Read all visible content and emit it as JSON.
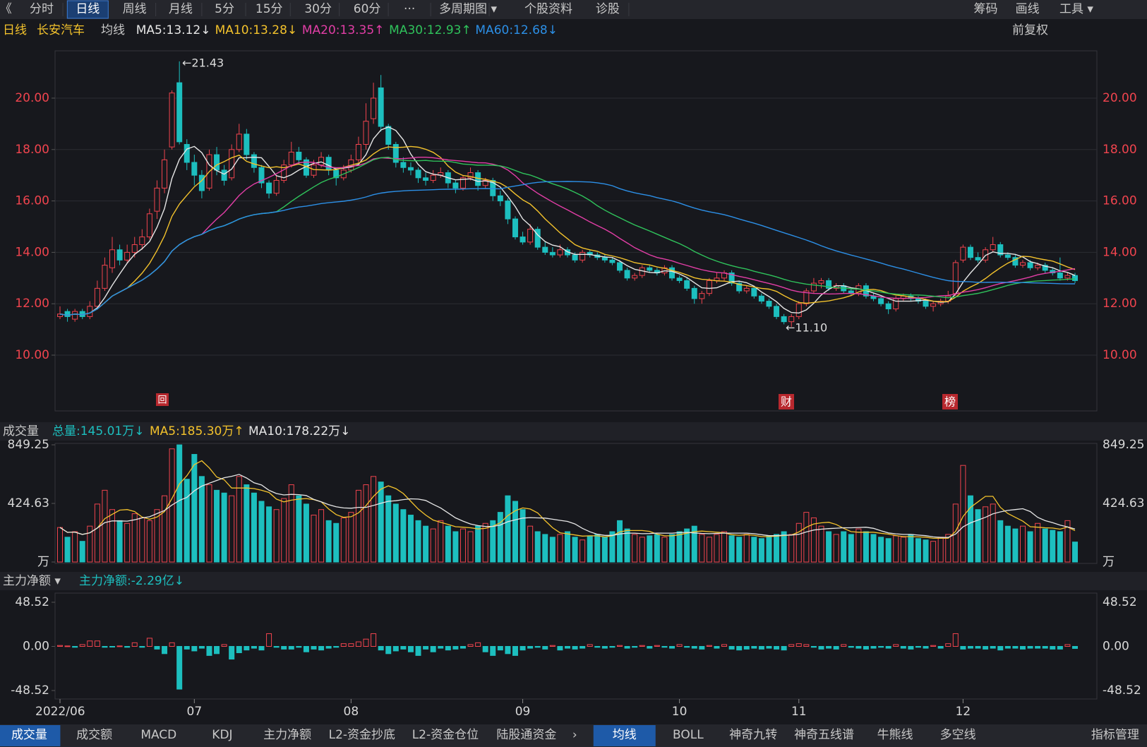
{
  "toolbar": {
    "left": [
      "《",
      "分时",
      "日线",
      "周线",
      "月线",
      "5分",
      "15分",
      "30分",
      "60分",
      "···",
      "多周期图 ▾",
      "个股资料",
      "诊股"
    ],
    "right": [
      "筹码",
      "画线",
      "工具 ▾"
    ]
  },
  "info": {
    "period": "日线",
    "stock": "长安汽车",
    "ma_label": "均线",
    "adjust": "前复权"
  },
  "chart_data": {
    "type": "candlestick",
    "up_color": "#f0444e",
    "down_color": "#1dbfbf",
    "grid": true,
    "ylim": [
      7.83,
      21.84
    ],
    "yticks": [
      {
        "value": 10,
        "label": "10.00"
      },
      {
        "value": 12,
        "label": "12.00"
      },
      {
        "value": 14,
        "label": "14.00"
      },
      {
        "value": 16,
        "label": "16.00"
      },
      {
        "value": 18,
        "label": "18.00"
      },
      {
        "value": 20,
        "label": "20.00"
      }
    ],
    "ma": [
      {
        "name": "MA5:13.12↓",
        "period": 5,
        "color": "#e6e6e6"
      },
      {
        "name": "MA10:13.28↓",
        "period": 10,
        "color": "#f3c22c"
      },
      {
        "name": "MA20:13.35↑",
        "period": 20,
        "color": "#e23ea6"
      },
      {
        "name": "MA30:12.93↑",
        "period": 30,
        "color": "#2fc25b"
      },
      {
        "name": "MA60:12.68↓",
        "period": 60,
        "color": "#2c8fe6"
      }
    ],
    "annotations": [
      "←21.43",
      "←11.10"
    ],
    "badges": [
      "回",
      "财",
      "榜"
    ],
    "categories": [
      "2022/06",
      null,
      null,
      null,
      null,
      null,
      null,
      null,
      null,
      null,
      null,
      null,
      null,
      null,
      null,
      null,
      null,
      null,
      "07",
      null,
      null,
      null,
      null,
      null,
      null,
      null,
      null,
      null,
      null,
      null,
      null,
      null,
      null,
      null,
      null,
      null,
      null,
      null,
      null,
      "08",
      null,
      null,
      null,
      null,
      null,
      null,
      null,
      null,
      null,
      null,
      null,
      null,
      null,
      null,
      null,
      null,
      null,
      null,
      null,
      null,
      null,
      null,
      "09",
      null,
      null,
      null,
      null,
      null,
      null,
      null,
      null,
      null,
      null,
      null,
      null,
      null,
      null,
      null,
      null,
      null,
      null,
      null,
      null,
      "10",
      null,
      null,
      null,
      null,
      null,
      null,
      null,
      null,
      null,
      null,
      null,
      null,
      null,
      null,
      null,
      "11",
      null,
      null,
      null,
      null,
      null,
      null,
      null,
      null,
      null,
      null,
      null,
      null,
      null,
      null,
      null,
      null,
      null,
      null,
      null,
      null,
      null,
      "12",
      null,
      null,
      null,
      null,
      null,
      null,
      null,
      null,
      null,
      null,
      null,
      null,
      null,
      null,
      null
    ],
    "candles": [
      [
        11.5,
        11.9,
        11.4,
        11.6
      ],
      [
        11.7,
        11.8,
        11.3,
        11.5
      ],
      [
        11.4,
        11.8,
        11.3,
        11.7
      ],
      [
        11.7,
        11.8,
        11.4,
        11.5
      ],
      [
        11.5,
        12.1,
        11.4,
        11.9
      ],
      [
        11.9,
        12.9,
        11.8,
        12.6
      ],
      [
        12.6,
        13.8,
        12.5,
        13.5
      ],
      [
        13.4,
        14.6,
        13.2,
        14.1
      ],
      [
        14.1,
        14.3,
        13.5,
        13.7
      ],
      [
        13.7,
        14.3,
        13.6,
        14.0
      ],
      [
        14.0,
        14.6,
        13.8,
        14.3
      ],
      [
        14.3,
        14.9,
        14.1,
        14.6
      ],
      [
        14.6,
        15.7,
        14.5,
        15.5
      ],
      [
        15.6,
        16.8,
        15.3,
        16.5
      ],
      [
        16.5,
        18.0,
        16.3,
        17.6
      ],
      [
        18.1,
        20.3,
        18.0,
        20.2
      ],
      [
        20.6,
        21.43,
        18.2,
        18.3
      ],
      [
        18.2,
        18.4,
        17.2,
        17.5
      ],
      [
        17.5,
        17.8,
        16.6,
        17.0
      ],
      [
        17.0,
        17.2,
        16.1,
        16.4
      ],
      [
        16.5,
        18.0,
        16.4,
        17.8
      ],
      [
        17.8,
        18.1,
        17.0,
        17.2
      ],
      [
        17.2,
        17.4,
        16.6,
        16.8
      ],
      [
        16.9,
        18.2,
        16.8,
        18.0
      ],
      [
        18.0,
        19.0,
        17.9,
        18.6
      ],
      [
        18.6,
        18.8,
        17.6,
        17.8
      ],
      [
        17.8,
        17.9,
        17.1,
        17.3
      ],
      [
        17.3,
        17.4,
        16.5,
        16.7
      ],
      [
        16.7,
        16.8,
        16.1,
        16.3
      ],
      [
        16.3,
        17.0,
        16.2,
        16.8
      ],
      [
        16.8,
        17.6,
        16.7,
        17.4
      ],
      [
        17.4,
        18.3,
        17.3,
        17.9
      ],
      [
        17.9,
        18.1,
        17.4,
        17.6
      ],
      [
        17.6,
        17.7,
        16.9,
        17.0
      ],
      [
        17.0,
        17.6,
        16.9,
        17.4
      ],
      [
        17.4,
        17.9,
        17.3,
        17.7
      ],
      [
        17.7,
        17.8,
        17.0,
        17.2
      ],
      [
        17.2,
        17.3,
        16.6,
        16.9
      ],
      [
        16.9,
        17.4,
        16.8,
        17.2
      ],
      [
        17.2,
        17.8,
        17.1,
        17.6
      ],
      [
        17.6,
        18.5,
        17.5,
        18.2
      ],
      [
        18.2,
        19.8,
        18.0,
        19.1
      ],
      [
        19.2,
        20.6,
        19.0,
        20.0
      ],
      [
        20.4,
        20.9,
        18.7,
        18.9
      ],
      [
        18.9,
        19.0,
        18.0,
        18.2
      ],
      [
        18.2,
        18.3,
        17.3,
        17.5
      ],
      [
        17.5,
        17.7,
        17.1,
        17.3
      ],
      [
        17.3,
        17.5,
        17.0,
        17.2
      ],
      [
        17.2,
        17.3,
        16.7,
        16.9
      ],
      [
        16.9,
        17.1,
        16.6,
        16.8
      ],
      [
        16.8,
        17.2,
        16.7,
        17.0
      ],
      [
        17.0,
        17.3,
        16.9,
        17.1
      ],
      [
        17.1,
        17.2,
        16.5,
        16.7
      ],
      [
        16.7,
        16.8,
        16.3,
        16.5
      ],
      [
        16.5,
        17.0,
        16.4,
        16.9
      ],
      [
        16.9,
        17.3,
        16.8,
        17.1
      ],
      [
        17.1,
        17.2,
        16.4,
        16.6
      ],
      [
        16.6,
        16.9,
        16.5,
        16.8
      ],
      [
        16.8,
        16.9,
        16.0,
        16.2
      ],
      [
        16.2,
        16.4,
        15.8,
        16.0
      ],
      [
        16.0,
        16.1,
        15.1,
        15.3
      ],
      [
        15.3,
        15.4,
        14.5,
        14.6
      ],
      [
        14.6,
        14.8,
        14.3,
        14.4
      ],
      [
        14.4,
        15.1,
        14.3,
        14.9
      ],
      [
        14.9,
        15.0,
        14.1,
        14.2
      ],
      [
        14.2,
        14.4,
        13.9,
        14.0
      ],
      [
        14.0,
        14.2,
        13.8,
        13.9
      ],
      [
        13.9,
        14.3,
        13.8,
        14.1
      ],
      [
        14.1,
        14.2,
        13.8,
        13.9
      ],
      [
        13.9,
        14.0,
        13.6,
        13.7
      ],
      [
        13.7,
        14.1,
        13.6,
        14.0
      ],
      [
        14.0,
        14.1,
        13.8,
        13.9
      ],
      [
        13.9,
        14.0,
        13.7,
        13.8
      ],
      [
        13.8,
        13.9,
        13.6,
        13.7
      ],
      [
        13.7,
        13.8,
        13.5,
        13.6
      ],
      [
        13.6,
        13.7,
        13.2,
        13.3
      ],
      [
        13.3,
        13.4,
        12.9,
        13.0
      ],
      [
        13.0,
        13.2,
        12.9,
        13.1
      ],
      [
        13.1,
        13.5,
        13.0,
        13.4
      ],
      [
        13.4,
        13.5,
        13.2,
        13.3
      ],
      [
        13.3,
        13.4,
        13.1,
        13.2
      ],
      [
        13.2,
        13.5,
        13.1,
        13.4
      ],
      [
        13.4,
        13.5,
        12.9,
        13.0
      ],
      [
        13.0,
        13.1,
        12.8,
        12.9
      ],
      [
        12.9,
        13.0,
        12.5,
        12.6
      ],
      [
        12.6,
        12.7,
        12.0,
        12.2
      ],
      [
        12.2,
        12.5,
        12.0,
        12.4
      ],
      [
        12.4,
        13.0,
        12.3,
        12.9
      ],
      [
        12.9,
        13.2,
        12.8,
        13.0
      ],
      [
        13.0,
        13.3,
        12.9,
        13.2
      ],
      [
        13.2,
        13.3,
        12.7,
        12.8
      ],
      [
        12.8,
        12.9,
        12.4,
        12.5
      ],
      [
        12.5,
        12.7,
        12.4,
        12.6
      ],
      [
        12.6,
        12.7,
        12.2,
        12.3
      ],
      [
        12.3,
        12.4,
        12.0,
        12.1
      ],
      [
        12.1,
        12.2,
        11.8,
        11.9
      ],
      [
        11.9,
        12.0,
        11.4,
        11.5
      ],
      [
        11.5,
        11.6,
        11.2,
        11.3
      ],
      [
        11.3,
        11.6,
        11.1,
        11.5
      ],
      [
        11.5,
        12.1,
        11.4,
        12.0
      ],
      [
        12.0,
        12.6,
        11.9,
        12.5
      ],
      [
        12.5,
        13.0,
        12.4,
        12.8
      ],
      [
        12.8,
        13.0,
        12.6,
        12.9
      ],
      [
        12.9,
        13.0,
        12.5,
        12.6
      ],
      [
        12.6,
        12.8,
        12.5,
        12.7
      ],
      [
        12.7,
        12.8,
        12.4,
        12.5
      ],
      [
        12.5,
        12.6,
        12.3,
        12.4
      ],
      [
        12.4,
        12.8,
        12.3,
        12.7
      ],
      [
        12.7,
        12.8,
        12.2,
        12.3
      ],
      [
        12.3,
        12.4,
        12.1,
        12.2
      ],
      [
        12.2,
        12.3,
        11.9,
        12.0
      ],
      [
        12.0,
        12.1,
        11.6,
        11.8
      ],
      [
        11.8,
        12.3,
        11.7,
        12.2
      ],
      [
        12.2,
        12.4,
        12.1,
        12.3
      ],
      [
        12.3,
        12.4,
        12.1,
        12.2
      ],
      [
        12.2,
        12.3,
        12.0,
        12.1
      ],
      [
        12.1,
        12.2,
        11.8,
        11.9
      ],
      [
        11.9,
        12.1,
        11.7,
        12.0
      ],
      [
        12.0,
        12.2,
        11.9,
        12.1
      ],
      [
        12.1,
        12.5,
        12.0,
        12.3
      ],
      [
        12.4,
        13.7,
        12.3,
        13.6
      ],
      [
        13.7,
        14.3,
        13.6,
        14.2
      ],
      [
        14.2,
        14.3,
        13.7,
        13.8
      ],
      [
        13.8,
        14.0,
        13.6,
        13.7
      ],
      [
        13.7,
        14.2,
        13.6,
        14.1
      ],
      [
        14.1,
        14.6,
        14.0,
        14.3
      ],
      [
        14.3,
        14.4,
        13.8,
        13.9
      ],
      [
        13.9,
        14.0,
        13.7,
        13.8
      ],
      [
        13.8,
        13.9,
        13.4,
        13.5
      ],
      [
        13.5,
        13.7,
        13.4,
        13.6
      ],
      [
        13.6,
        13.7,
        13.3,
        13.4
      ],
      [
        13.4,
        13.6,
        13.3,
        13.5
      ],
      [
        13.5,
        13.6,
        13.2,
        13.3
      ],
      [
        13.3,
        13.4,
        13.1,
        13.2
      ],
      [
        13.2,
        13.8,
        12.9,
        13.0
      ],
      [
        13.0,
        13.2,
        12.9,
        13.1
      ],
      [
        13.1,
        13.2,
        12.8,
        12.9
      ]
    ]
  },
  "volume": {
    "title": "成交量",
    "legend": [
      {
        "name": "总量:145.01万↓",
        "color": "#1dbfbf"
      },
      {
        "name": "MA5:185.30万↑",
        "color": "#f3c22c"
      },
      {
        "name": "MA10:178.22万↓",
        "color": "#e6e6e6"
      }
    ],
    "ma": [
      {
        "period": 5,
        "color": "#f3c22c"
      },
      {
        "period": 10,
        "color": "#e6e6e6"
      }
    ],
    "ylim": [
      0,
      849.25
    ],
    "yticks": [
      {
        "value": 0,
        "label": "万"
      },
      424.63,
      849.25
    ],
    "values": [
      250,
      180,
      220,
      150,
      260,
      420,
      520,
      380,
      300,
      280,
      350,
      320,
      300,
      380,
      480,
      820,
      849,
      600,
      780,
      620,
      560,
      520,
      500,
      480,
      620,
      560,
      500,
      440,
      400,
      380,
      460,
      560,
      480,
      420,
      340,
      380,
      300,
      280,
      320,
      360,
      520,
      560,
      620,
      580,
      480,
      420,
      380,
      340,
      300,
      260,
      240,
      300,
      260,
      220,
      240,
      220,
      260,
      280,
      300,
      360,
      480,
      440,
      380,
      260,
      220,
      200,
      180,
      200,
      220,
      180,
      160,
      190,
      200,
      180,
      220,
      300,
      240,
      200,
      180,
      190,
      200,
      180,
      200,
      220,
      240,
      260,
      200,
      180,
      200,
      220,
      190,
      180,
      200,
      180,
      170,
      190,
      200,
      220,
      200,
      280,
      360,
      320,
      260,
      220,
      200,
      220,
      200,
      240,
      220,
      200,
      180,
      170,
      190,
      180,
      200,
      170,
      160,
      150,
      180,
      200,
      420,
      700,
      480,
      380,
      400,
      420,
      300,
      260,
      240,
      260,
      220,
      280,
      240,
      230,
      220,
      300,
      145.01
    ]
  },
  "net": {
    "title": "主力净额 ▾",
    "legend": "主力净额:-2.29亿↓",
    "ylim": [
      -48.52,
      48.52
    ],
    "yticks": [
      {
        "value": -48.52,
        "label": "-48.52"
      },
      {
        "value": 0,
        "label": "0.00"
      },
      {
        "value": 48.52,
        "label": "48.52"
      }
    ],
    "values": [
      1,
      0.5,
      -1,
      2,
      6,
      6,
      -1,
      -0.5,
      0.5,
      -1,
      4,
      -1,
      9,
      -3,
      -8,
      4,
      -47,
      -3,
      -5,
      -2,
      -10,
      -8,
      2,
      -14,
      -7,
      -4,
      -2,
      -4,
      14,
      -1,
      -3,
      -3,
      -1,
      -6,
      -3,
      -4,
      -2,
      -1,
      3,
      3,
      5,
      8,
      14,
      -4,
      -8,
      -5,
      -3,
      -6,
      -10,
      -3,
      -6,
      -2,
      -4,
      -3,
      -2,
      2,
      4,
      -6,
      -10,
      -4,
      -8,
      -10,
      -4,
      -2,
      -1,
      -3,
      1,
      -4,
      -2,
      -3,
      -2,
      2,
      -1,
      -2,
      -1,
      1,
      -2,
      -1,
      1,
      -2,
      1,
      -1,
      -2,
      2,
      -1,
      -2,
      -3,
      1,
      -2,
      2,
      -3,
      -4,
      -3,
      -2,
      -3,
      -2,
      -3,
      -4,
      2,
      3,
      2,
      -1,
      -3,
      -2,
      -3,
      2,
      -1,
      -2,
      -3,
      -2,
      -1,
      -2,
      2,
      -2,
      -3,
      -1,
      -2,
      1,
      -2,
      3,
      14,
      -3,
      -2,
      -2,
      -3,
      -2,
      -4,
      -2,
      -2,
      -3,
      -2,
      -2,
      -2,
      -3,
      -3,
      2,
      -2.29
    ]
  },
  "tabs_left": [
    "成交量",
    "成交额",
    "MACD",
    "KDJ",
    "主力净额",
    "L2-资金抄底",
    "L2-资金仓位",
    "陆股通资金",
    "›"
  ],
  "tabs_right": [
    "均线",
    "BOLL",
    "神奇九转",
    "神奇五线谱",
    "牛熊线",
    "多空线",
    "指标管理"
  ]
}
